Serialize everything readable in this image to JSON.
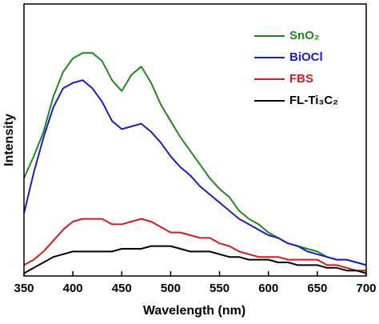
{
  "chart_data": {
    "type": "line",
    "xlabel": "Wavelength (nm)",
    "ylabel": "Intensity",
    "x": [
      350,
      360,
      370,
      380,
      390,
      400,
      410,
      420,
      430,
      440,
      450,
      460,
      470,
      480,
      490,
      500,
      510,
      520,
      530,
      540,
      550,
      560,
      570,
      580,
      590,
      600,
      610,
      620,
      630,
      640,
      650,
      660,
      670,
      680,
      690,
      700
    ],
    "xlim": [
      350,
      700
    ],
    "xticks": [
      350,
      400,
      450,
      500,
      550,
      600,
      650,
      700
    ],
    "ylim": [
      0,
      100
    ],
    "legend": "upper right",
    "series": [
      {
        "name": "SnO₂",
        "color": "#1e8a1e",
        "values": [
          36,
          44,
          53,
          66,
          75,
          80,
          82,
          82,
          79,
          72,
          68,
          74,
          77,
          71,
          63,
          57,
          51,
          46,
          41,
          36,
          32,
          29,
          24,
          21,
          19,
          16,
          14,
          12,
          11,
          10,
          9,
          7,
          6,
          6,
          5,
          4
        ]
      },
      {
        "name": "BiOCl",
        "color": "#1c1cc8",
        "values": [
          23,
          38,
          51,
          62,
          69,
          71,
          72,
          69,
          64,
          57,
          54,
          55,
          56,
          53,
          49,
          44,
          40,
          37,
          33,
          30,
          27,
          24,
          21,
          19,
          17,
          15,
          14,
          12,
          11,
          9,
          8,
          7,
          6,
          6,
          5,
          4
        ]
      },
      {
        "name": "FBS",
        "color": "#d01c1c",
        "values": [
          4,
          6,
          9,
          13,
          17,
          20,
          21,
          21,
          21,
          19,
          19,
          20,
          21,
          20,
          18,
          16,
          16,
          15,
          14,
          14,
          12,
          11,
          9,
          8,
          7,
          7,
          7,
          6,
          6,
          6,
          6,
          4,
          4,
          3,
          2,
          2
        ]
      },
      {
        "name": "FL-Ti₃C₂",
        "color": "#000000",
        "values": [
          1,
          3,
          5,
          7,
          8,
          9,
          9,
          9,
          9,
          9,
          10,
          10,
          10,
          11,
          11,
          11,
          10,
          9,
          9,
          9,
          8,
          7,
          7,
          6,
          6,
          6,
          5,
          5,
          4,
          4,
          4,
          3,
          3,
          2,
          2,
          1
        ]
      }
    ]
  }
}
